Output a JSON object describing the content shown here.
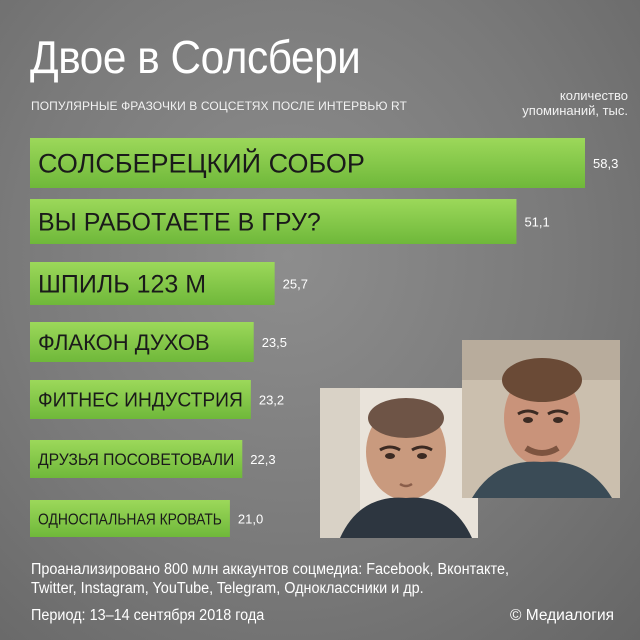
{
  "header": {
    "title": "Двое в Солсбери",
    "subtitle": "ПОПУЛЯРНЫЕ ФРАЗОЧКИ В СОЦСЕТЯХ ПОСЛЕ ИНТЕРВЬЮ RT",
    "unit_label": "количество упоминаний, тыс."
  },
  "colors": {
    "bar_top": "#9cd85a",
    "bar_bottom": "#6fb83a",
    "background": "#7a7a7a"
  },
  "chart_data": {
    "type": "bar",
    "orientation": "horizontal",
    "categories": [
      "СОЛСБЕРЕЦКИЙ СОБОР",
      "ВЫ РАБОТАЕТЕ В ГРУ?",
      "ШПИЛЬ 123 М",
      "ФЛАКОН ДУХОВ",
      "ФИТНЕС ИНДУСТРИЯ",
      "ДРУЗЬЯ ПОСОВЕТОВАЛИ",
      "ОДНОСПАЛЬНАЯ КРОВАТЬ"
    ],
    "values": [
      58.3,
      51.1,
      25.7,
      23.5,
      23.2,
      22.3,
      21.0
    ],
    "value_labels": [
      "58,3",
      "51,1",
      "25,7",
      "23,5",
      "23,2",
      "22,3",
      "21,0"
    ],
    "title": "Двое в Солсбери",
    "ylabel": "количество упоминаний, тыс.",
    "grid": false
  },
  "photos": [
    {
      "name": "photo-man-left",
      "icon": "portrait-photo"
    },
    {
      "name": "photo-man-right",
      "icon": "portrait-photo"
    }
  ],
  "footer": {
    "source_text": "Проанализировано 800 млн аккаунтов соцмедиа: Facebook, Вконтакте, Twitter, Instagram, YouTube, Telegram, Одноклассники и др.",
    "period": "Период: 13–14 сентября 2018 года",
    "copyright": "© Медиалогия"
  }
}
